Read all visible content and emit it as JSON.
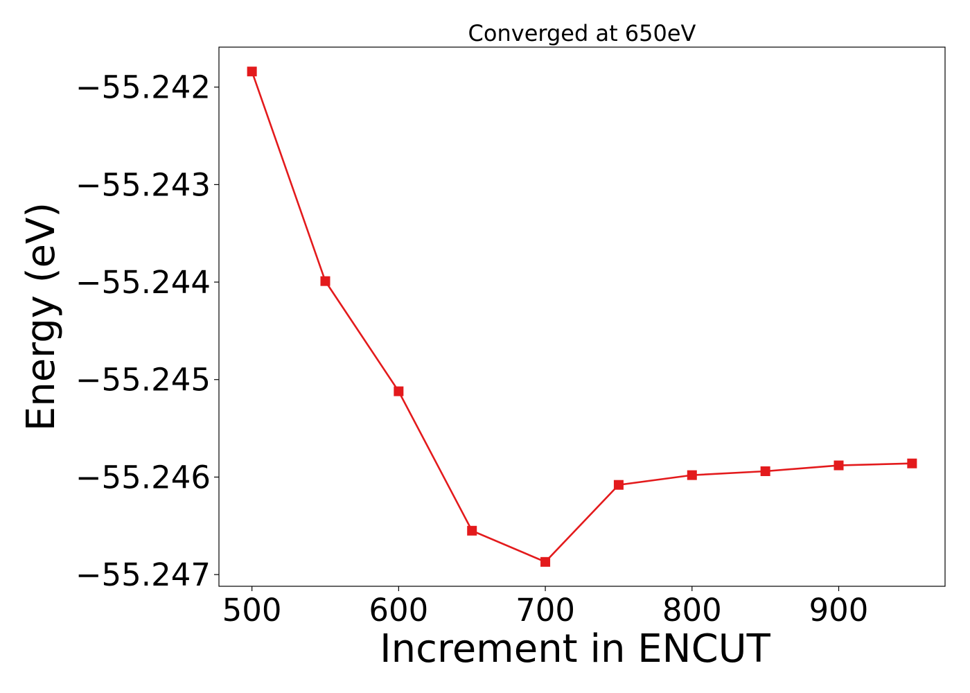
{
  "chart_data": {
    "type": "line",
    "title": "Converged at 650eV",
    "xlabel": "Increment in ENCUT",
    "ylabel": "Energy (eV)",
    "x": [
      500,
      550,
      600,
      650,
      700,
      750,
      800,
      850,
      900,
      950
    ],
    "series": [
      {
        "values": [
          -55.24184,
          -55.24399,
          -55.24512,
          -55.24655,
          -55.24687,
          -55.24608,
          -55.24598,
          -55.24594,
          -55.24588,
          -55.24586
        ],
        "color": "#e31a1c",
        "marker": "square"
      }
    ],
    "xticks": [
      500,
      600,
      700,
      800,
      900
    ],
    "xtick_labels": [
      "500",
      "600",
      "700",
      "800",
      "900"
    ],
    "yticks": [
      -55.242,
      -55.243,
      -55.244,
      -55.245,
      -55.246,
      -55.247
    ],
    "ytick_labels": [
      "−55.242",
      "−55.243",
      "−55.244",
      "−55.245",
      "−55.246",
      "−55.247"
    ],
    "xlim": [
      477.5,
      972.5
    ],
    "ylim": [
      -55.24712,
      -55.24159
    ],
    "grid": false,
    "legend": "none"
  }
}
